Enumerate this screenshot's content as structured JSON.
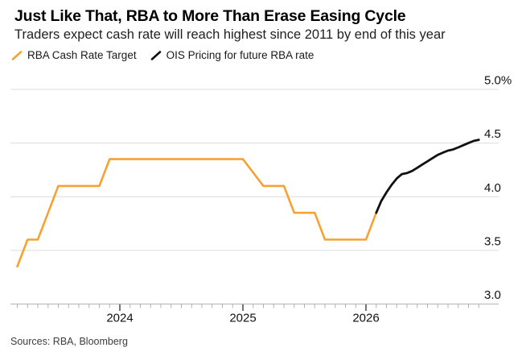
{
  "header": {
    "title": "Just Like That, RBA to More Than Erase Easing Cycle",
    "subtitle": "Traders expect cash rate will reach highest since 2011 by end of this year"
  },
  "source": "Sources: RBA, Bloomberg",
  "chart_data": {
    "type": "line",
    "title": "Just Like That, RBA to More Than Erase Easing Cycle",
    "subtitle": "Traders expect cash rate will reach highest since 2011 by end of this year",
    "x_axis": {
      "range": [
        "2023-03",
        "2027-01"
      ],
      "tick_labels": [
        "2024",
        "2025",
        "2026"
      ],
      "tick_months": [
        "2024-01",
        "2025-01",
        "2026-01"
      ],
      "minor_tick_unit": "month",
      "grid": false
    },
    "y_axis": {
      "unit": "%",
      "side": "right",
      "ylim": [
        3.0,
        5.0
      ],
      "tick_values": [
        5.0,
        4.5,
        4.0,
        3.5,
        3.0
      ],
      "tick_labels": [
        "5.0%",
        "4.5",
        "4.0",
        "3.5",
        "3.0"
      ],
      "grid": true
    },
    "series": [
      {
        "name": "RBA Cash Rate Target",
        "slug": "rba-cash-rate-line",
        "color": "#F6A233",
        "points": [
          [
            "2023-03",
            3.35
          ],
          [
            "2023-04",
            3.6
          ],
          [
            "2023-05",
            3.6
          ],
          [
            "2023-06",
            3.85
          ],
          [
            "2023-07",
            4.1
          ],
          [
            "2023-11",
            4.1
          ],
          [
            "2023-12",
            4.35
          ],
          [
            "2025-01",
            4.35
          ],
          [
            "2025-03",
            4.1
          ],
          [
            "2025-05",
            4.1
          ],
          [
            "2025-06",
            3.85
          ],
          [
            "2025-08",
            3.85
          ],
          [
            "2025-09",
            3.6
          ],
          [
            "2026-01",
            3.6
          ],
          [
            "2026-02",
            3.85
          ]
        ]
      },
      {
        "name": "OIS Pricing for future RBA rate",
        "slug": "ois-pricing-line",
        "color": "#111111",
        "points": [
          [
            "2026-02-01",
            3.85
          ],
          [
            "2026-02-16",
            3.96
          ],
          [
            "2026-03-01",
            4.04
          ],
          [
            "2026-03-16",
            4.11
          ],
          [
            "2026-04-01",
            4.17
          ],
          [
            "2026-04-16",
            4.21
          ],
          [
            "2026-05-01",
            4.22
          ],
          [
            "2026-05-16",
            4.24
          ],
          [
            "2026-06-01",
            4.27
          ],
          [
            "2026-06-16",
            4.3
          ],
          [
            "2026-07-01",
            4.33
          ],
          [
            "2026-07-16",
            4.36
          ],
          [
            "2026-08-01",
            4.39
          ],
          [
            "2026-08-16",
            4.41
          ],
          [
            "2026-09-01",
            4.43
          ],
          [
            "2026-09-16",
            4.44
          ],
          [
            "2026-10-01",
            4.46
          ],
          [
            "2026-10-16",
            4.48
          ],
          [
            "2026-11-01",
            4.5
          ],
          [
            "2026-11-16",
            4.52
          ],
          [
            "2026-12-01",
            4.53
          ]
        ]
      }
    ]
  }
}
